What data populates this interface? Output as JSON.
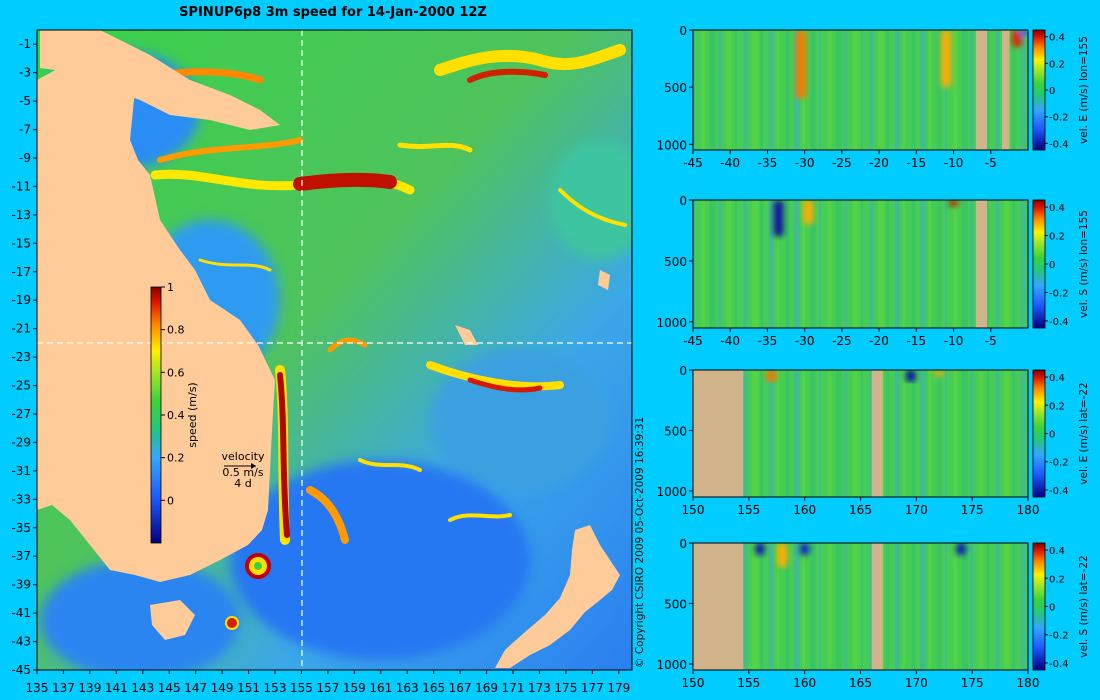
{
  "title": "SPINUP6p8 3m speed for 14-Jan-2000 12Z",
  "copyright": "© Copyright CSIRO 2009   05-Oct-2009 16:39:31",
  "colors": {
    "background": "#00CCFF",
    "land": "#FFCC99",
    "section_mask": "#D2B48C",
    "crosshair": "#FFFFFF"
  },
  "chart_data": [
    {
      "type": "heatmap",
      "title": "SPINUP6p8 3m speed for 14-Jan-2000 12Z",
      "x_ticks": [
        "135",
        "137",
        "139",
        "141",
        "143",
        "145",
        "147",
        "149",
        "151",
        "153",
        "155",
        "157",
        "159",
        "161",
        "163",
        "165",
        "167",
        "169",
        "171",
        "173",
        "175",
        "177",
        "179"
      ],
      "y_ticks": [
        "-1",
        "-3",
        "-5",
        "-7",
        "-9",
        "-11",
        "-13",
        "-15",
        "-17",
        "-19",
        "-21",
        "-23",
        "-25",
        "-27",
        "-29",
        "-31",
        "-33",
        "-35",
        "-37",
        "-39",
        "-41",
        "-43",
        "-45"
      ],
      "xlim": [
        135,
        180
      ],
      "ylim": [
        -45,
        0
      ],
      "crosshair": {
        "lon": 155,
        "lat": -22
      },
      "colorbar": {
        "label": "speed (m/s)",
        "ticks": [
          "1",
          "0.8",
          "0.6",
          "0.4",
          "0.2",
          "0"
        ],
        "range": [
          -0.2,
          1
        ]
      },
      "velocity_key": {
        "title": "velocity",
        "speed": "0.5 m/s",
        "time": "4 d"
      }
    },
    {
      "type": "heatmap",
      "name": "vel. E (m/s) lon=155",
      "x_ticks": [
        "-45",
        "-40",
        "-35",
        "-30",
        "-25",
        "-20",
        "-15",
        "-10",
        "-5"
      ],
      "xlim": [
        -45,
        0
      ],
      "y_ticks": [
        "0",
        "500",
        "1000"
      ],
      "ylim": [
        1050,
        0
      ],
      "colorbar": {
        "label": "vel. E (m/s) lon=155",
        "ticks": [
          "0.4",
          "0.2",
          "0",
          "-0.2",
          "-0.4"
        ],
        "range": [
          -0.45,
          0.45
        ]
      },
      "mask": [
        [
          -7,
          -5.5
        ],
        [
          -3.5,
          -2.5
        ]
      ],
      "features": [
        {
          "x": -30.5,
          "depth": 600,
          "v": 0.35
        },
        {
          "x": -11,
          "depth": 500,
          "v": 0.3
        },
        {
          "x": -1.5,
          "depth": 150,
          "v": 0.4
        },
        {
          "x": -0.5,
          "depth": 50,
          "v": -0.3
        }
      ]
    },
    {
      "type": "heatmap",
      "name": "vel. S (m/s) lon=155",
      "x_ticks": [
        "-45",
        "-40",
        "-35",
        "-30",
        "-25",
        "-20",
        "-15",
        "-10",
        "-5"
      ],
      "xlim": [
        -45,
        0
      ],
      "y_ticks": [
        "0",
        "500",
        "1000"
      ],
      "ylim": [
        1050,
        0
      ],
      "colorbar": {
        "label": "vel. S (m/s) lon=155",
        "ticks": [
          "0.4",
          "0.2",
          "0",
          "-0.2",
          "-0.4"
        ],
        "range": [
          -0.45,
          0.45
        ]
      },
      "mask": [
        [
          -7,
          -5.5
        ]
      ],
      "features": [
        {
          "x": -33.5,
          "depth": 300,
          "v": -0.42
        },
        {
          "x": -29.5,
          "depth": 200,
          "v": 0.3
        },
        {
          "x": -10,
          "depth": 50,
          "v": 0.42
        }
      ]
    },
    {
      "type": "heatmap",
      "name": "vel. E (m/s) lat=-22",
      "x_ticks": [
        "150",
        "155",
        "160",
        "165",
        "170",
        "175",
        "180"
      ],
      "xlim": [
        150,
        180
      ],
      "y_ticks": [
        "0",
        "500",
        "1000"
      ],
      "ylim": [
        1050,
        0
      ],
      "colorbar": {
        "label": "vel. E (m/s) lat=-22",
        "ticks": [
          "0.4",
          "0.2",
          "0",
          "-0.2",
          "-0.4"
        ],
        "range": [
          -0.45,
          0.45
        ]
      },
      "mask": [
        [
          150,
          154.5
        ],
        [
          166,
          167
        ]
      ],
      "features": [
        {
          "x": 169.5,
          "depth": 100,
          "v": -0.42
        },
        {
          "x": 157,
          "depth": 100,
          "v": 0.35
        },
        {
          "x": 172,
          "depth": 50,
          "v": 0.3
        }
      ]
    },
    {
      "type": "heatmap",
      "name": "vel. S (m/s) lat=-22",
      "x_ticks": [
        "150",
        "155",
        "160",
        "165",
        "170",
        "175",
        "180"
      ],
      "xlim": [
        150,
        180
      ],
      "y_ticks": [
        "0",
        "500",
        "1000"
      ],
      "ylim": [
        1050,
        0
      ],
      "colorbar": {
        "label": "vel. S (m/s) lat=-22",
        "ticks": [
          "0.4",
          "0.2",
          "0",
          "-0.2",
          "-0.4"
        ],
        "range": [
          -0.45,
          0.45
        ]
      },
      "mask": [
        [
          150,
          154.5
        ],
        [
          166,
          167
        ]
      ],
      "features": [
        {
          "x": 156,
          "depth": 100,
          "v": -0.4
        },
        {
          "x": 160,
          "depth": 100,
          "v": -0.38
        },
        {
          "x": 174,
          "depth": 100,
          "v": -0.4
        },
        {
          "x": 158,
          "depth": 200,
          "v": 0.3
        }
      ]
    }
  ]
}
